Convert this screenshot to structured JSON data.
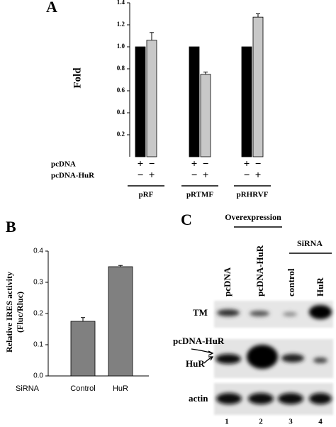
{
  "chart_data": [
    {
      "type": "bar",
      "panel_label": "A",
      "ylabel": "Fold",
      "categories": [
        "pRF",
        "pRTMF",
        "pRHRVF"
      ],
      "series": [
        {
          "name": "pcDNA",
          "color": "#000000",
          "values": [
            1,
            1,
            1
          ]
        },
        {
          "name": "pcDNA-HuR",
          "color": "#c8c8c8",
          "values": [
            1.06,
            0.75,
            1.27
          ],
          "errors": [
            0.07,
            0.02,
            0.03
          ]
        }
      ],
      "signs": [
        [
          "+",
          "−",
          "+",
          "−",
          "+",
          "−"
        ],
        [
          "−",
          "+",
          "−",
          "+",
          "−",
          "+"
        ]
      ],
      "ylim": [
        0,
        1.4
      ],
      "yticks": [
        0.2,
        0.4,
        0.6,
        0.8,
        {
          "value": 1,
          "label": "1.0"
        },
        1.2,
        1.4
      ]
    },
    {
      "type": "bar",
      "panel_label": "B",
      "ylabel": [
        "Relative IRES activity",
        "(Fluc/Rluc)"
      ],
      "xlabel": "SiRNA",
      "categories": [
        "Control",
        "HuR"
      ],
      "series": [
        {
          "color": "#808080",
          "values": [
            0.175,
            0.35
          ],
          "errors": [
            0.012,
            0.004
          ]
        }
      ],
      "ylim": [
        0,
        0.4
      ],
      "yticks": [
        {
          "value": 0,
          "label": "0.0"
        },
        0.1,
        0.2,
        0.3,
        0.4
      ]
    }
  ],
  "panel_c": {
    "panel_label": "C",
    "overexpression": "Overexpression",
    "sirna": "SiRNA",
    "lanes": [
      "pcDNA",
      "pcDNA-HuR",
      "control",
      "HuR"
    ],
    "rows": [
      "TM",
      "pcDNA-HuR",
      "HuR",
      "actin"
    ],
    "lane_numbers": [
      "1",
      "2",
      "3",
      "4"
    ]
  }
}
